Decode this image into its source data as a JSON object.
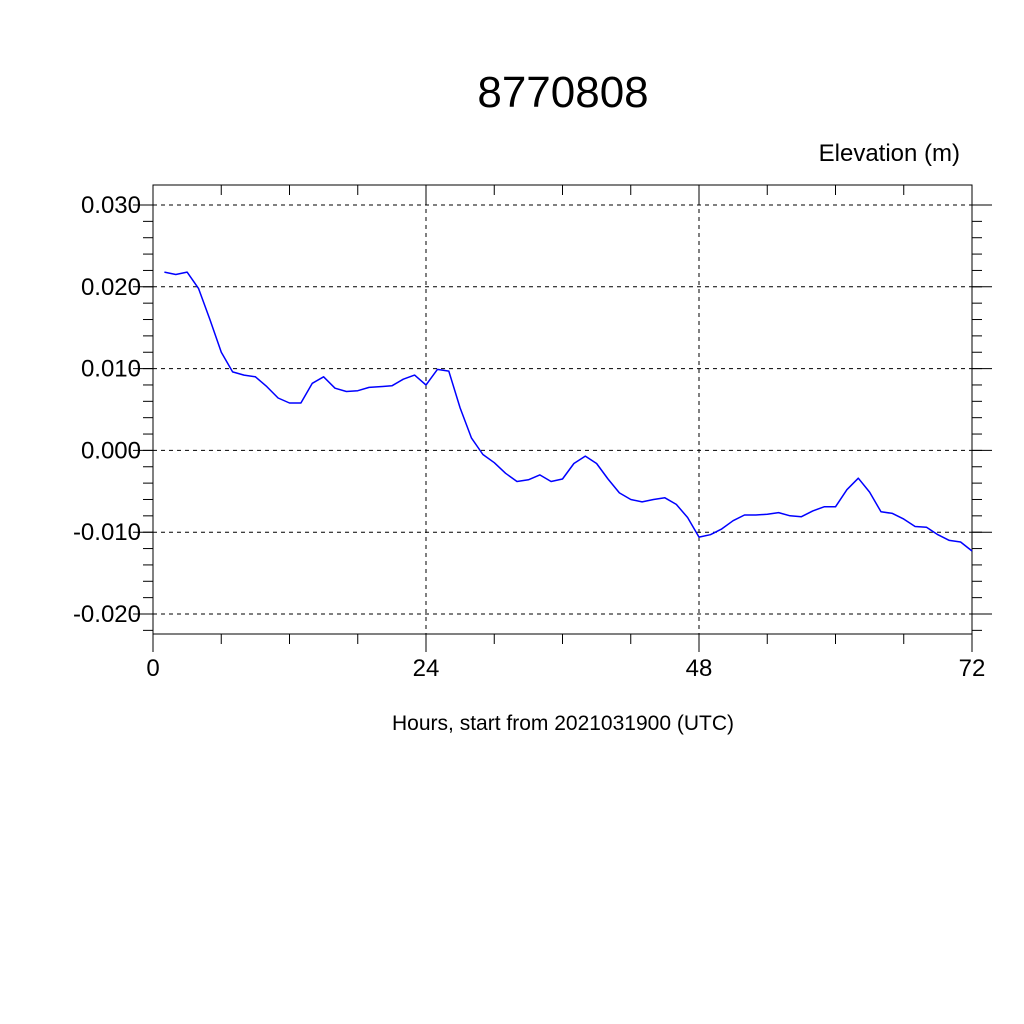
{
  "chart_data": {
    "type": "line",
    "title": "8770808",
    "ylabel": "Elevation (m)",
    "xlabel": "Hours, start from 2021031900 (UTC)",
    "xlim": [
      0,
      72
    ],
    "ylim": [
      -0.02,
      0.03
    ],
    "x_ticks": [
      0,
      24,
      48,
      72
    ],
    "x_tick_labels": [
      "0",
      "24",
      "48",
      "72"
    ],
    "y_ticks": [
      -0.02,
      -0.01,
      0.0,
      0.01,
      0.02,
      0.03
    ],
    "y_tick_labels": [
      "-0.020",
      "-0.010",
      "0.000",
      "0.010",
      "0.020",
      "0.030"
    ],
    "grid": true,
    "series": [
      {
        "color": "#0000ff",
        "x": [
          1,
          2,
          3,
          4,
          5,
          6,
          7,
          8,
          9,
          10,
          11,
          12,
          13,
          14,
          15,
          16,
          17,
          18,
          19,
          20,
          21,
          22,
          23,
          24,
          25,
          26,
          27,
          28,
          29,
          30,
          31,
          32,
          33,
          34,
          35,
          36,
          37,
          38,
          39,
          40,
          41,
          42,
          43,
          44,
          45,
          46,
          47,
          48,
          49,
          50,
          51,
          52,
          53,
          54,
          55,
          56,
          57,
          58,
          59,
          60,
          61,
          62,
          63,
          64,
          65,
          66,
          67,
          68,
          69,
          70,
          71,
          72
        ],
        "values": [
          0.0218,
          0.0215,
          0.0218,
          0.0198,
          0.016,
          0.012,
          0.0096,
          0.0092,
          0.009,
          0.0078,
          0.0064,
          0.0058,
          0.0058,
          0.0082,
          0.009,
          0.0076,
          0.0072,
          0.0073,
          0.0077,
          0.0078,
          0.0079,
          0.0087,
          0.0092,
          0.008,
          0.0099,
          0.0097,
          0.0052,
          0.0015,
          -0.0005,
          -0.0015,
          -0.0028,
          -0.0038,
          -0.0036,
          -0.003,
          -0.0038,
          -0.0035,
          -0.0016,
          -0.0007,
          -0.0016,
          -0.0035,
          -0.0052,
          -0.006,
          -0.0063,
          -0.006,
          -0.0058,
          -0.0066,
          -0.0082,
          -0.0106,
          -0.0103,
          -0.0096,
          -0.0086,
          -0.0079,
          -0.0079,
          -0.0078,
          -0.0076,
          -0.008,
          -0.0081,
          -0.0074,
          -0.0069,
          -0.0069,
          -0.0048,
          -0.0034,
          -0.0051,
          -0.0075,
          -0.0077,
          -0.0084,
          -0.0093,
          -0.0094,
          -0.0103,
          -0.011,
          -0.0112,
          -0.0123
        ]
      }
    ]
  }
}
